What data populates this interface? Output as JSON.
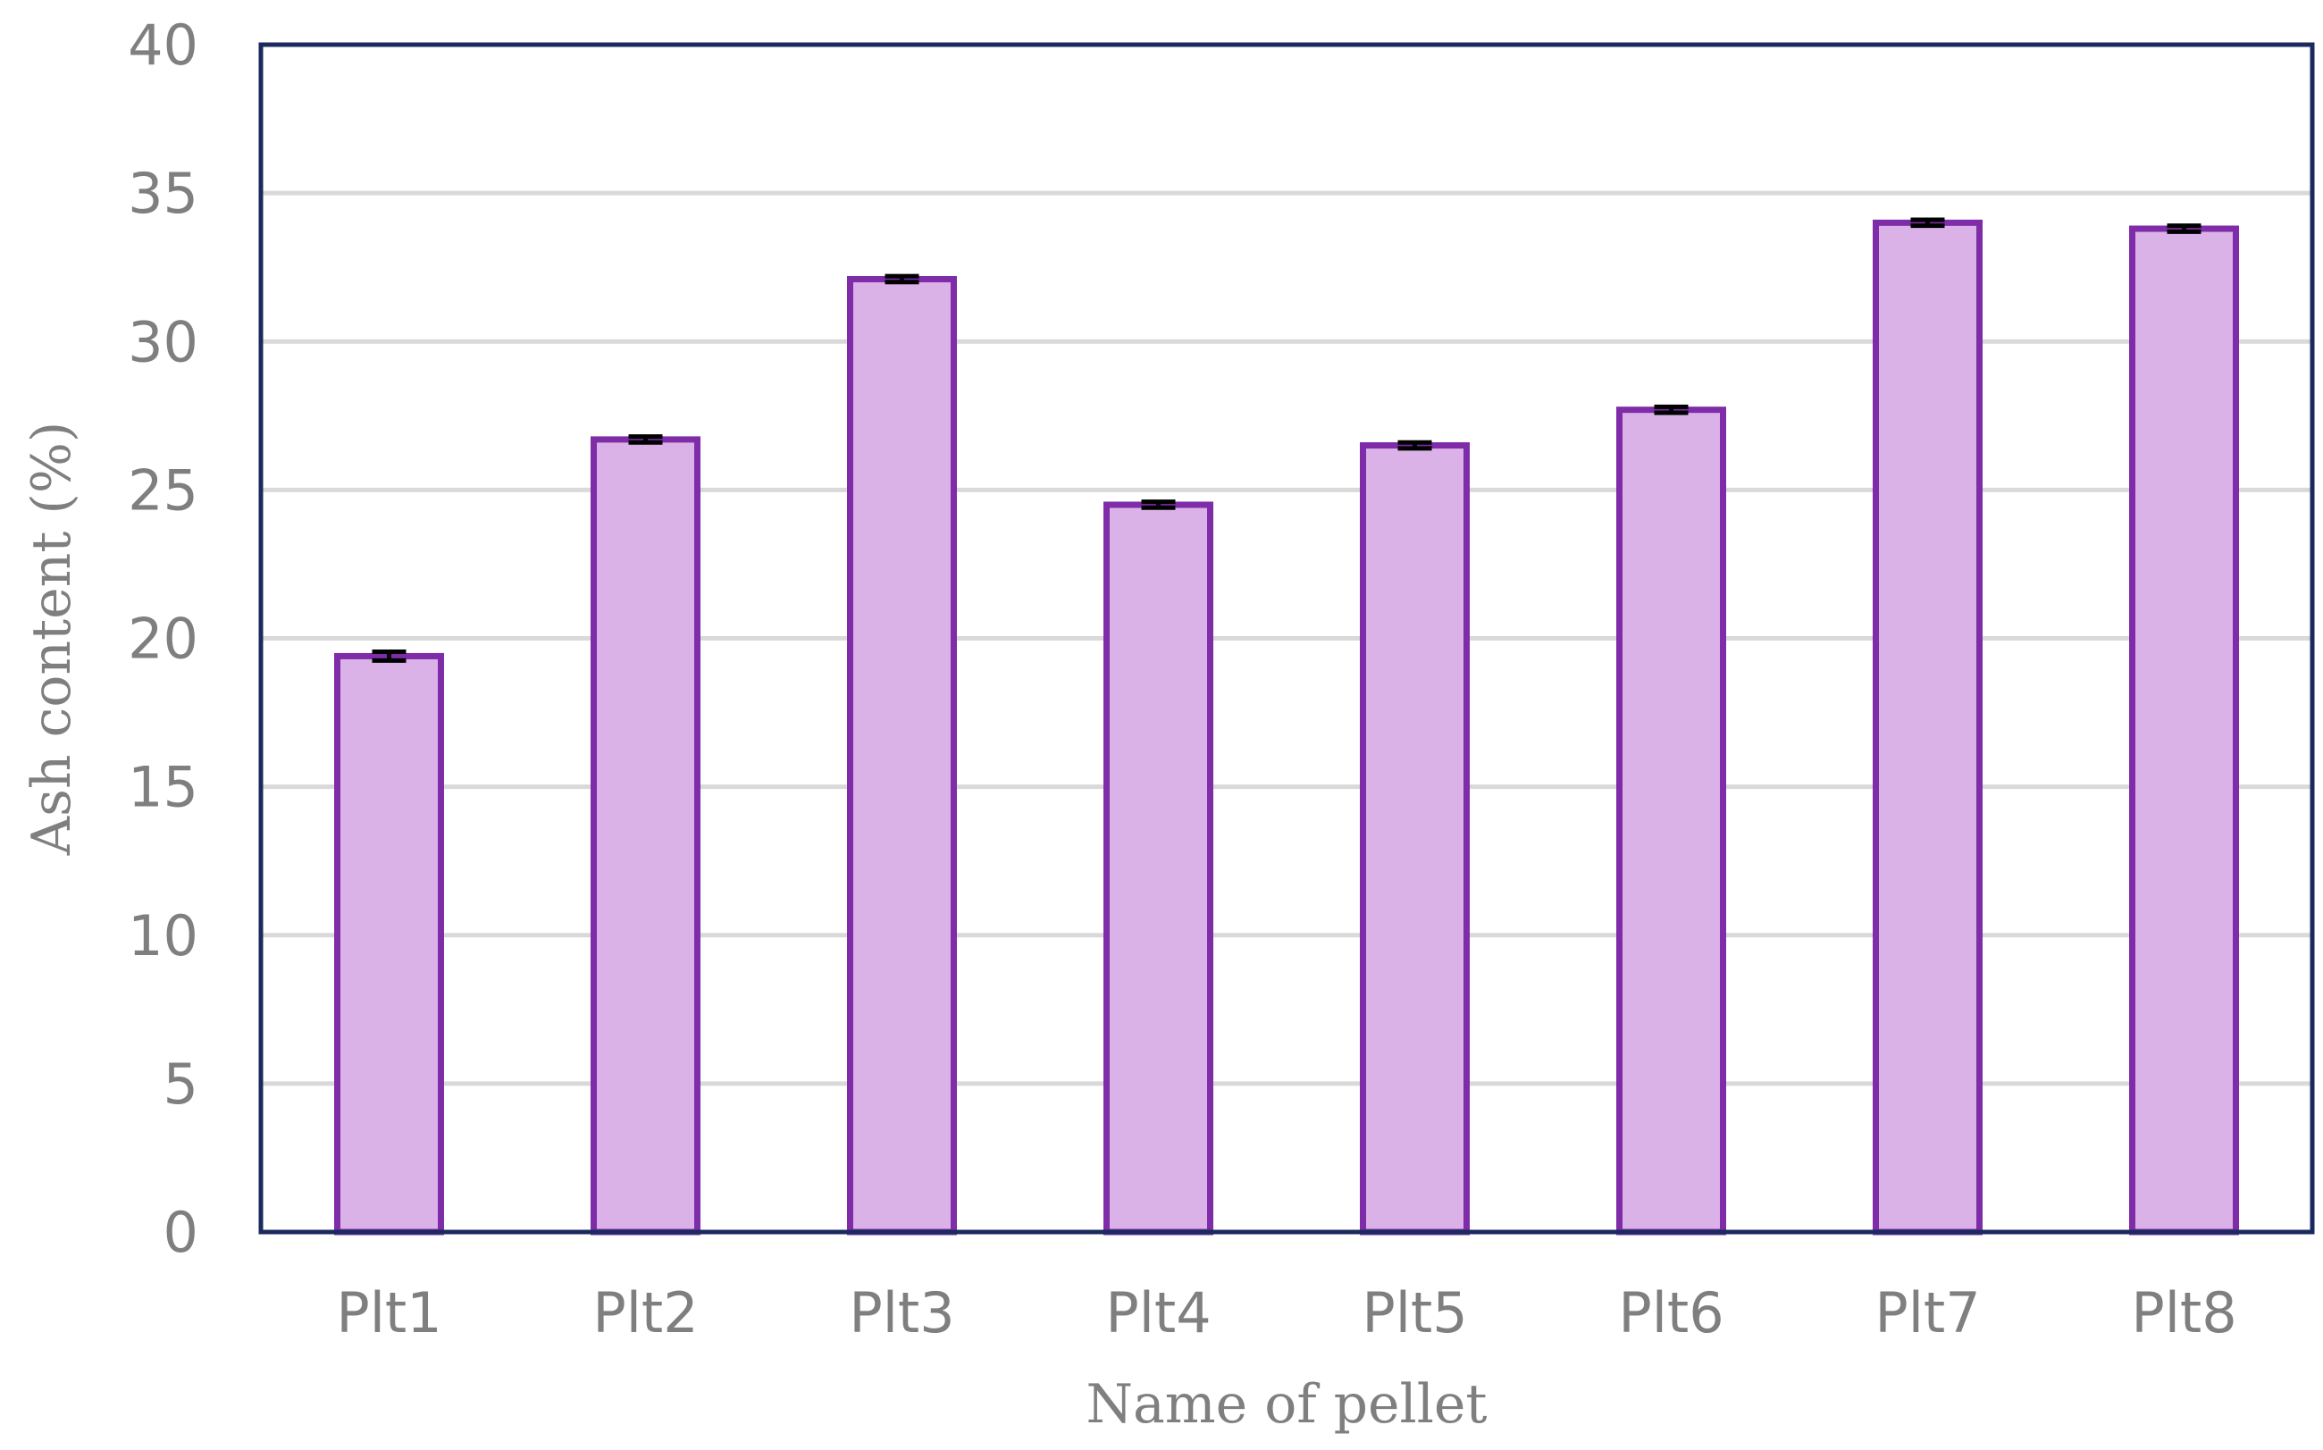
{
  "chart_data": {
    "type": "bar",
    "categories": [
      "Plt1",
      "Plt2",
      "Plt3",
      "Plt4",
      "Plt5",
      "Plt6",
      "Plt7",
      "Plt8"
    ],
    "values": [
      19.4,
      26.7,
      32.1,
      24.5,
      26.5,
      27.7,
      34.0,
      33.8
    ],
    "error": [
      0.15,
      0.1,
      0.1,
      0.1,
      0.1,
      0.1,
      0.1,
      0.1
    ],
    "xlabel": "Name of pellet",
    "ylabel": "Ash content (%)",
    "ylim": [
      0,
      40
    ],
    "yticks": [
      "0",
      "5",
      "10",
      "15",
      "20",
      "25",
      "30",
      "35",
      "40"
    ],
    "grid": true,
    "legend": "none",
    "colors": {
      "bar_fill": "#dbb2e8",
      "bar_stroke": "#7e2ca8",
      "frame": "#1a2a5e",
      "gridline": "#d9d9d9",
      "error_bar": "#000000"
    }
  }
}
